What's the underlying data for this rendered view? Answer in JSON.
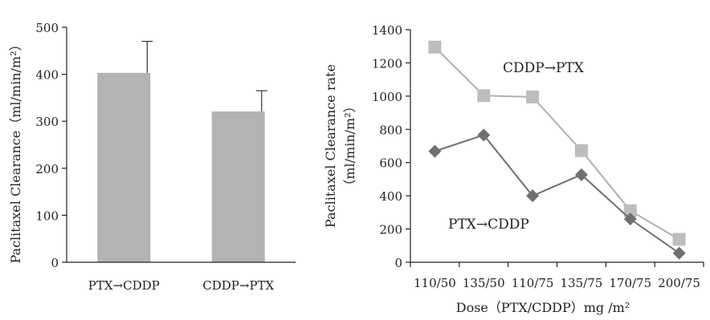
{
  "chart_data": [
    {
      "type": "bar",
      "categories": [
        "PTX→CDDP",
        "CDDP→PTX"
      ],
      "values": [
        403,
        321
      ],
      "error_upper": [
        470,
        365
      ],
      "ylabel": "Paclitaxel Clearance（ml/min/m²）",
      "ylim": [
        0,
        500
      ],
      "yticks": [
        "0",
        "100",
        "200",
        "300",
        "400",
        "500"
      ],
      "bar_color": "#b3b3b3",
      "grid": false
    },
    {
      "type": "line",
      "categories": [
        "110/50",
        "135/50",
        "110/75",
        "135/75",
        "170/75",
        "200/75"
      ],
      "series": [
        {
          "name": "CDDP→PTX",
          "marker": "square",
          "color": "#bdbdbd",
          "line_color": "#b0b0b0",
          "values": [
            1295,
            1003,
            995,
            672,
            310,
            138
          ]
        },
        {
          "name": "PTX→CDDP",
          "marker": "diamond",
          "color": "#707070",
          "line_color": "#707070",
          "values": [
            668,
            766,
            400,
            527,
            260,
            55
          ]
        }
      ],
      "ylabel_line1": "Paclitaxel Clearance rate",
      "ylabel_line2": "（ml/min/m²）",
      "xlabel": "Dose（PTX/CDDP）mg /m²",
      "ylim": [
        0,
        1400
      ],
      "yticks": [
        "0",
        "200",
        "400",
        "600",
        "800",
        "1000",
        "1200",
        "1400"
      ],
      "grid": false
    }
  ]
}
